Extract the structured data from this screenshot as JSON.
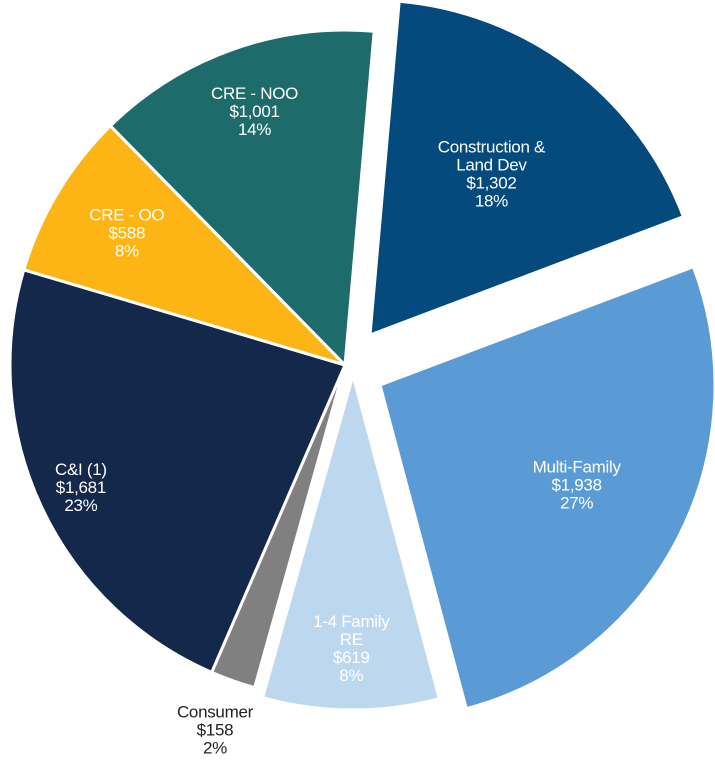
{
  "chart_data": {
    "type": "pie",
    "categories": [
      [
        "Construction &",
        "Land Dev"
      ],
      [
        "Multi-Family"
      ],
      [
        "1-4 Family",
        "RE"
      ],
      [
        "Consumer"
      ],
      [
        "C&I (1)"
      ],
      [
        "CRE - OO"
      ],
      [
        "CRE - NOO"
      ]
    ],
    "values": [
      1302,
      1938,
      619,
      158,
      1681,
      588,
      1001
    ],
    "value_labels": [
      "$1,302",
      "$1,938",
      "$619",
      "$158",
      "$1,681",
      "$588",
      "$1,001"
    ],
    "percent_values": [
      18,
      27,
      8,
      2,
      23,
      8,
      14
    ],
    "percent_labels": [
      "18%",
      "27%",
      "8%",
      "2%",
      "23%",
      "8%",
      "14%"
    ],
    "colors": [
      "#054a7d",
      "#5b9bd5",
      "#bdd7ee",
      "#808080",
      "#13284a",
      "#fcb515",
      "#1e6b6b"
    ]
  }
}
